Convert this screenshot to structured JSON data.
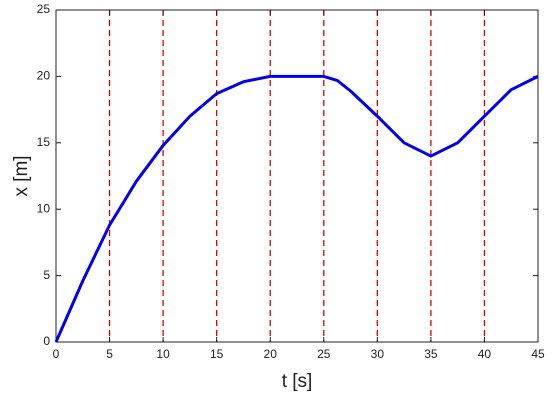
{
  "chart_data": {
    "type": "line",
    "x_label": "t [s]",
    "y_label": "x [m]",
    "x": [
      0,
      2.5,
      5,
      7.5,
      10,
      12.5,
      15,
      17.5,
      20,
      22.5,
      25,
      26.25,
      27.5,
      30,
      32.5,
      35,
      37.5,
      40,
      42.5,
      45
    ],
    "series": [
      {
        "color": "#0000ee",
        "values": [
          0,
          4.6,
          8.8,
          12.1,
          14.8,
          17,
          18.7,
          19.6,
          20,
          20,
          20,
          19.7,
          18.9,
          17,
          15,
          14,
          15,
          17,
          19,
          20
        ]
      }
    ],
    "xlim": [
      0,
      45
    ],
    "ylim": [
      0,
      25
    ],
    "xticks": [
      0,
      5,
      10,
      15,
      20,
      25,
      30,
      35,
      40,
      45
    ],
    "yticks": [
      0,
      5,
      10,
      15,
      20,
      25
    ],
    "vlines": [
      5,
      10,
      15,
      20,
      25,
      30,
      35,
      40
    ],
    "vline_color": "#e00000"
  }
}
